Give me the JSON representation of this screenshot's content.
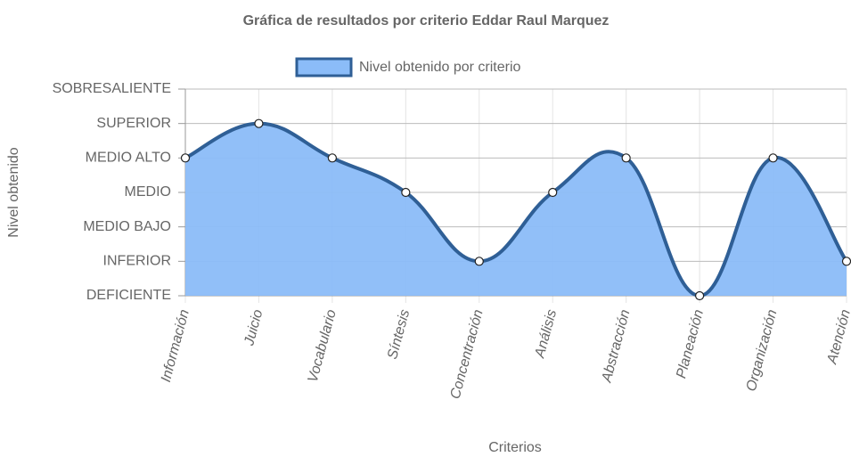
{
  "chart_data": {
    "type": "area",
    "title": "Gráfica de resultados por criterio Eddar Raul Marquez",
    "x_label": "Criterios",
    "y_label": "Nivel obtenido",
    "categories": [
      "Información",
      "Juicio",
      "Vocabulario",
      "Síntesis",
      "Concentración",
      "Análisis",
      "Abstracción",
      "Planeación",
      "Organización",
      "Atención"
    ],
    "series": [
      {
        "name": "Nivel obtenido por criterio",
        "color": "#8bbcf8",
        "border_color": "#2f5f96",
        "values": [
          4,
          5,
          4,
          3,
          1,
          3,
          4,
          0,
          4,
          1
        ]
      }
    ],
    "ylim": [
      0,
      6
    ],
    "yticks": [
      {
        "value": 0,
        "label": "DEFICIENTE"
      },
      {
        "value": 1,
        "label": "INFERIOR"
      },
      {
        "value": 2,
        "label": "MEDIO BAJO"
      },
      {
        "value": 3,
        "label": "MEDIO"
      },
      {
        "value": 4,
        "label": "MEDIO ALTO"
      },
      {
        "value": 5,
        "label": "SUPERIOR"
      },
      {
        "value": 6,
        "label": "SOBRESALIENTE"
      }
    ],
    "grid": true,
    "legend": "top"
  }
}
